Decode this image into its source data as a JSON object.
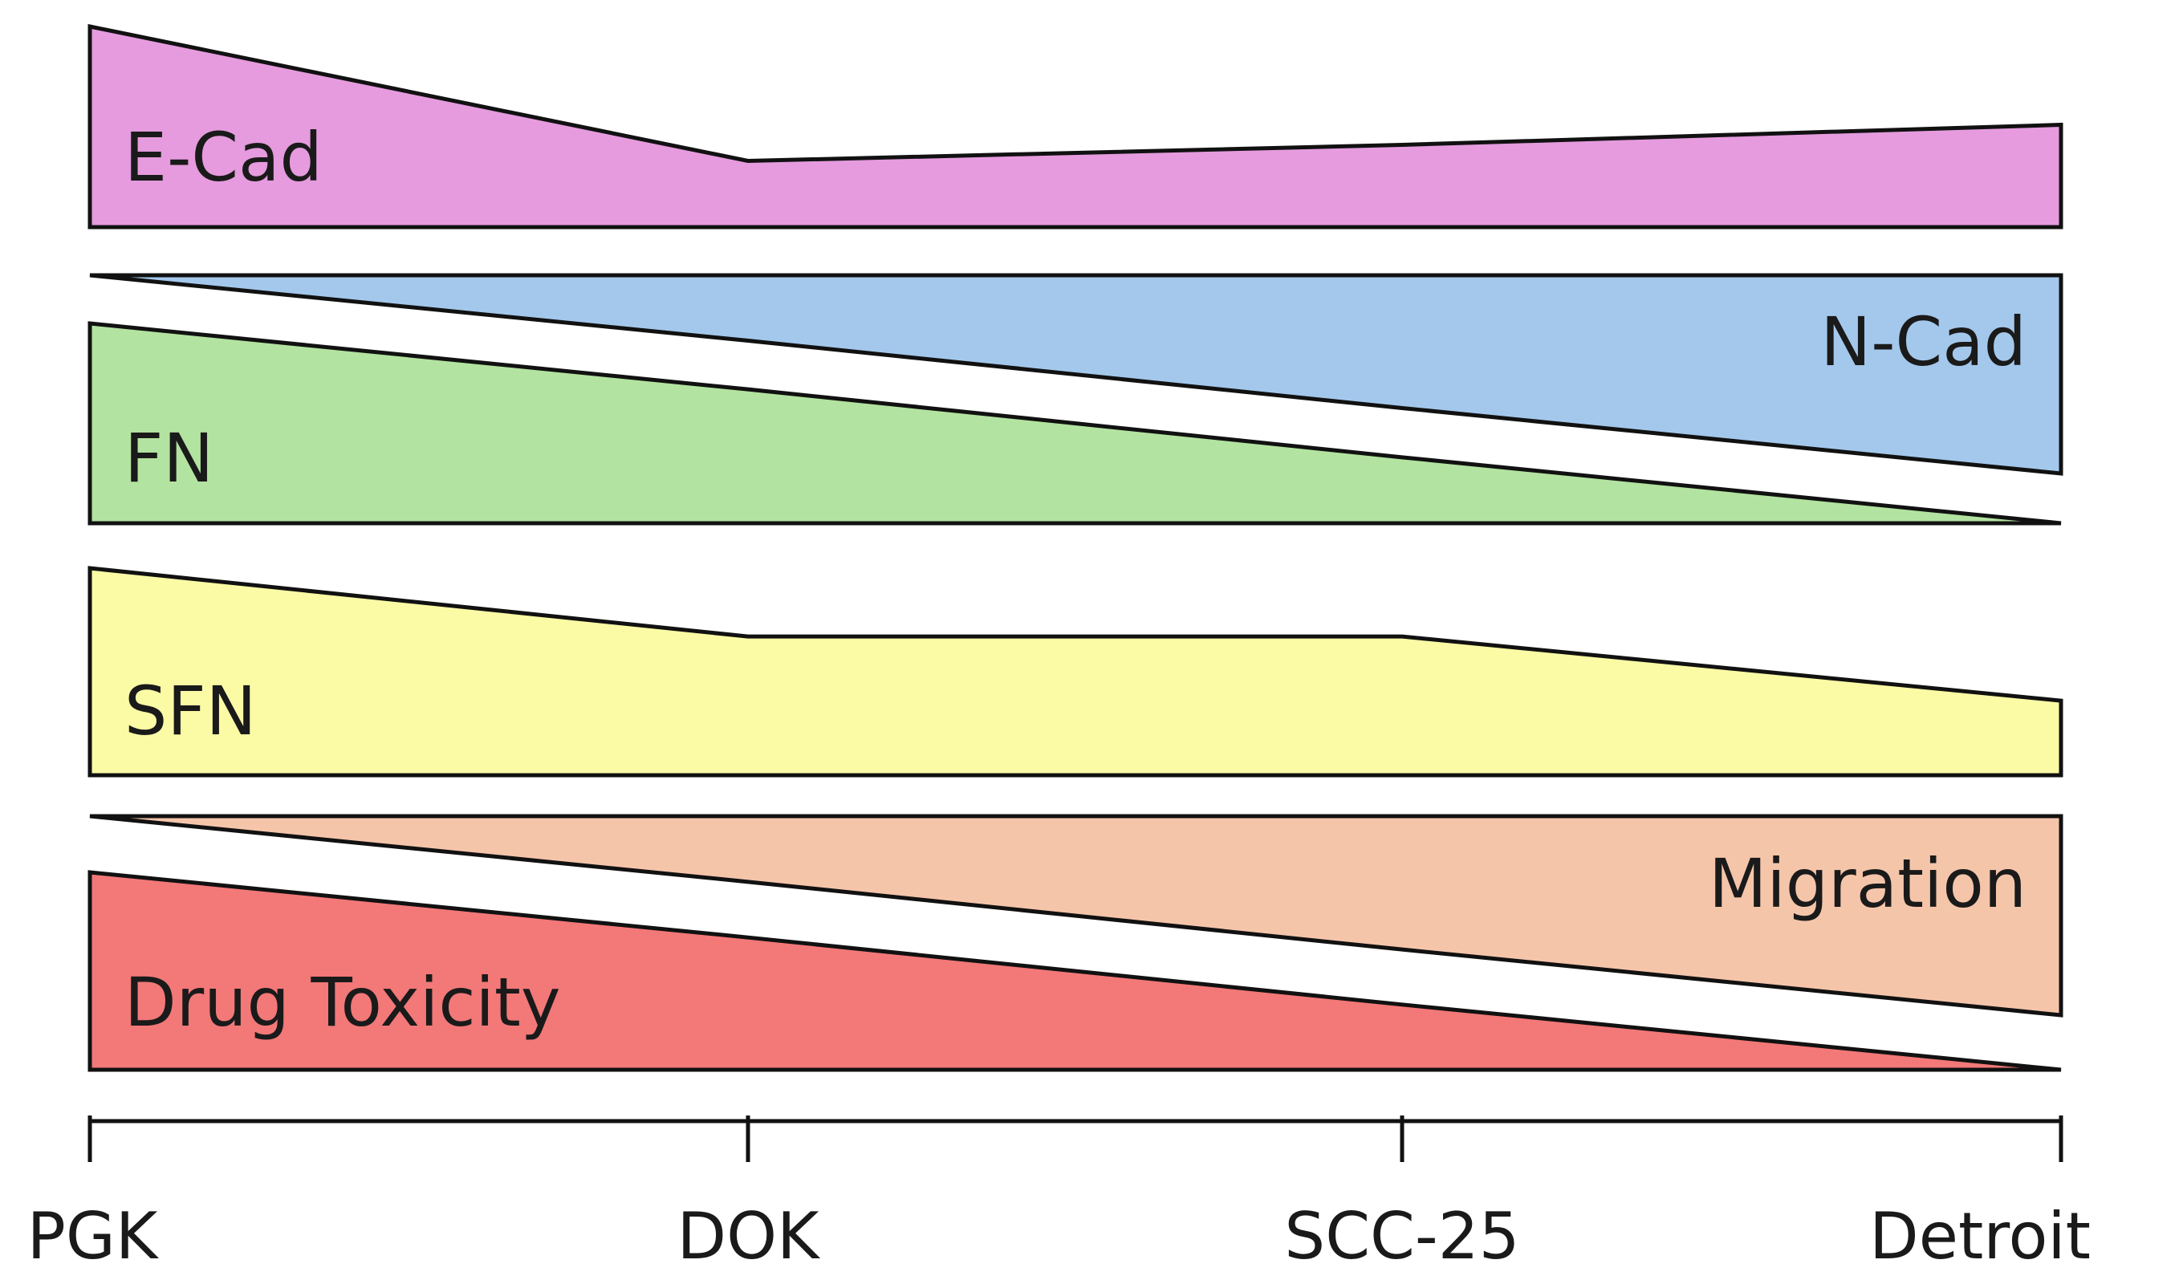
{
  "diagram": {
    "axis": {
      "categories": [
        "PGK",
        "DOK",
        "SCC-25",
        "Detroit"
      ]
    },
    "bands": [
      {
        "id": "ecad",
        "label": "E-Cad",
        "label_side": "left",
        "color": "#e59bde",
        "levels": [
          1.0,
          0.33,
          0.41,
          0.51
        ],
        "direction": "up"
      },
      {
        "id": "ncad",
        "label": "N-Cad",
        "label_side": "right",
        "color": "#a3c8ec",
        "levels": [
          0.0,
          0.33,
          0.67,
          1.0
        ],
        "direction": "down"
      },
      {
        "id": "fn",
        "label": "FN",
        "label_side": "left",
        "color": "#b3e3a0",
        "levels": [
          1.0,
          0.67,
          0.33,
          0.0
        ],
        "direction": "up"
      },
      {
        "id": "sfn",
        "label": "SFN",
        "label_side": "left",
        "color": "#fbfba6",
        "levels": [
          1.0,
          0.67,
          0.67,
          0.36
        ],
        "direction": "up"
      },
      {
        "id": "migration",
        "label": "Migration",
        "label_side": "right",
        "color": "#f5c5aa",
        "levels": [
          0.0,
          0.33,
          0.67,
          1.0
        ],
        "direction": "down"
      },
      {
        "id": "drug_toxicity",
        "label": "Drug Toxicity",
        "label_side": "left",
        "color": "#f37878",
        "levels": [
          1.0,
          0.67,
          0.33,
          0.0
        ],
        "direction": "up"
      }
    ]
  }
}
